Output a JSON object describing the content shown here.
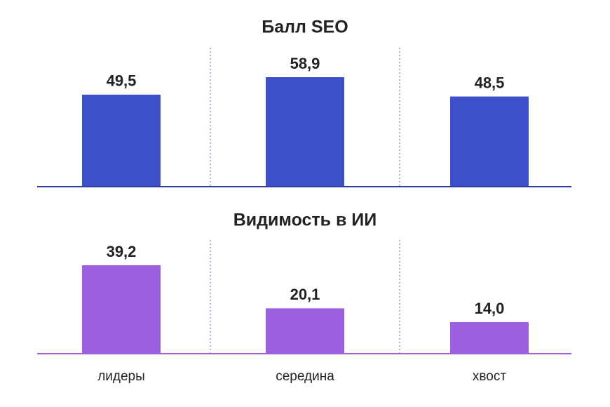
{
  "chart_data": [
    {
      "type": "bar",
      "title": "Балл SEO",
      "values": [
        49.5,
        58.9,
        48.5
      ],
      "value_labels": [
        "49,5",
        "58,9",
        "48,5"
      ],
      "color": "#3d4fc9"
    },
    {
      "type": "bar",
      "title": "Видимость в ИИ",
      "categories": [
        "лидеры",
        "середина",
        "хвост"
      ],
      "values": [
        39.2,
        20.1,
        14.0
      ],
      "value_labels": [
        "39,2",
        "20,1",
        "14,0"
      ],
      "color": "#9b5fe0"
    }
  ]
}
